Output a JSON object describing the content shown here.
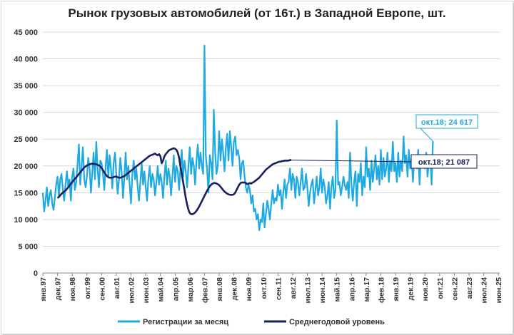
{
  "chart_data": {
    "type": "line",
    "title": "Рынок грузовых автомобилей (от 16т.) в Западной Европе, шт.",
    "ylim": [
      0,
      45000
    ],
    "y_ticks": [
      "0",
      "5 000",
      "10 000",
      "15 000",
      "20 000",
      "25 000",
      "30 000",
      "35 000",
      "40 000",
      "45 000"
    ],
    "x_tick_labels": [
      "янв.97",
      "дек.97",
      "ноя.98",
      "окт.99",
      "сен.00",
      "авг.01",
      "июл.02",
      "июн.03",
      "май.04",
      "апр.05",
      "мар.06",
      "фев.07",
      "янв.08",
      "дек.08",
      "ноя.09",
      "окт.10",
      "сен.11",
      "авг.12",
      "июл.13",
      "июн.14",
      "май.15",
      "апр.16",
      "мар.17",
      "фев.18",
      "янв.19",
      "дек.19",
      "ноя.20",
      "окт.21",
      "сен.22",
      "авг.23",
      "июл.24",
      "июн.25"
    ],
    "x_months_total": 342,
    "grid": "horizontal",
    "legend_position": "bottom",
    "series": [
      {
        "name": "Регистрации за месяц",
        "color": "#1ea9e1",
        "values": [
          15000,
          11500,
          13500,
          16000,
          12500,
          14500,
          15500,
          13000,
          11800,
          14000,
          16500,
          18000,
          14200,
          17500,
          18500,
          15500,
          13500,
          16500,
          19000,
          16000,
          17500,
          13500,
          18000,
          19500,
          15500,
          17000,
          20500,
          24000,
          16500,
          20000,
          23500,
          17500,
          16000,
          18000,
          21500,
          19500,
          15000,
          18500,
          22500,
          17500,
          24500,
          19500,
          16000,
          21000,
          20500,
          18500,
          15500,
          20000,
          23000,
          18000,
          22000,
          19500,
          15800,
          20500,
          22500,
          18500,
          14800,
          17500,
          21500,
          19000,
          14000,
          18000,
          22500,
          17500,
          20000,
          16500,
          13000,
          18500,
          21000,
          17500,
          19500,
          16000,
          13500,
          17000,
          20500,
          16500,
          19000,
          16000,
          13500,
          17500,
          20000,
          16000,
          18500,
          17500,
          14500,
          17000,
          20000,
          16500,
          18500,
          17000,
          14000,
          18000,
          21000,
          16500,
          19500,
          18000,
          14500,
          18000,
          22000,
          17000,
          20000,
          19000,
          15500,
          19500,
          23000,
          18000,
          21000,
          19000,
          16000,
          20000,
          23500,
          18500,
          21500,
          20000,
          16500,
          21000,
          24000,
          19500,
          22500,
          20000,
          18500,
          42500,
          22000,
          19000,
          15000,
          22000,
          20500,
          17500,
          30500,
          22500,
          18500,
          20000,
          26500,
          21000,
          25000,
          22500,
          19000,
          23500,
          26000,
          21000,
          26500,
          23500,
          20000,
          24500,
          25500,
          22000,
          23000,
          21500,
          17500,
          20500,
          21000,
          18000,
          16000,
          15000,
          16500,
          15500,
          13000,
          14500,
          11500,
          12000,
          10000,
          11000,
          8000,
          10000,
          9500,
          13000,
          8500,
          11000,
          13500,
          12000,
          10000,
          13000,
          15500,
          13000,
          14000,
          13500,
          16500,
          14500,
          15500,
          12000,
          15000,
          17500,
          14000,
          16500,
          17000,
          19500,
          15500,
          18500,
          17500,
          14000,
          18000,
          17000,
          14500,
          17000,
          19500,
          15500,
          16000,
          18500,
          16000,
          12500,
          15000,
          16500,
          17500,
          13000,
          15500,
          18000,
          14500,
          16000,
          19500,
          15000,
          17500,
          16000,
          13000,
          14500,
          17000,
          12000,
          16000,
          18000,
          14000,
          15500,
          28500,
          16500,
          17000,
          14500,
          16000,
          18000,
          16500,
          15500,
          17000,
          14000,
          22500,
          16500,
          13500,
          17000,
          19000,
          12500,
          18500,
          17000,
          20500,
          14500,
          18000,
          16000,
          23500,
          18000,
          19500,
          15500,
          21000,
          17000,
          19500,
          22000,
          17500,
          20000,
          16500,
          23000,
          17500,
          21500,
          18000,
          19500,
          22500,
          17000,
          21000,
          19000,
          24500,
          19000,
          20500,
          17000,
          22500,
          18000,
          21000,
          19000,
          25500,
          20500,
          22000,
          18000,
          23000,
          19500,
          21500,
          17000,
          21000,
          21500,
          19500,
          23000,
          16500,
          22000,
          21500,
          21000,
          19500,
          22500,
          18000,
          21000,
          22000,
          16500,
          24617
        ],
        "_note": "monthly values Jan-1997 to Oct-2018"
      },
      {
        "name": "Среднегодовой уровень",
        "color": "#1a1f5e",
        "values": [
          14000,
          14200,
          14500,
          14800,
          15000,
          15200,
          15400,
          15700,
          16000,
          16300,
          16700,
          17000,
          17300,
          17600,
          17900,
          18200,
          18500,
          18800,
          19100,
          19400,
          19700,
          19900,
          20100,
          20200,
          20300,
          20400,
          20400,
          20400,
          20350,
          20300,
          20200,
          20100,
          19900,
          19600,
          19200,
          18800,
          18400,
          18100,
          17900,
          17800,
          17800,
          17800,
          17900,
          18000,
          18000,
          17900,
          17800,
          17800,
          17900,
          18000,
          18100,
          18300,
          18500,
          18700,
          18900,
          19100,
          19300,
          19500,
          19700,
          19900,
          20100,
          20300,
          20500,
          20700,
          20900,
          21100,
          21300,
          21500,
          21700,
          21900,
          22000,
          22100,
          22200,
          22300,
          22100,
          22000,
          22200,
          21800,
          20500,
          21000,
          21800,
          22200,
          22500,
          22800,
          23000,
          23100,
          23200,
          23300,
          23200,
          23000,
          22500,
          21500,
          20000,
          18500,
          17000,
          15500,
          14000,
          12800,
          11800,
          11200,
          11000,
          11000,
          11100,
          11300,
          11600,
          12000,
          12400,
          12900,
          13400,
          13900,
          14400,
          14900,
          15400,
          15800,
          16200,
          16500,
          16700,
          16800,
          16800,
          16700,
          16600,
          16400,
          16100,
          15800,
          15500,
          15200,
          15000,
          14800,
          14700,
          14600,
          14600,
          14600,
          14700,
          15000,
          15500,
          16000,
          16500,
          16800,
          16900,
          16900,
          16900,
          16800,
          16600,
          16700,
          16800,
          16700,
          16900,
          17000,
          17200,
          17400,
          17600,
          17800,
          18100,
          18400,
          18700,
          19000,
          19300,
          19500,
          19700,
          19900,
          20100,
          20300,
          20400,
          20500,
          20600,
          20700,
          20800,
          20800,
          20900,
          20900,
          21000,
          21000,
          21000,
          21000,
          21100,
          21087
        ],
        "_note": "monthly values Dec-1997 to Oct-2018"
      }
    ],
    "annotations": [
      {
        "text": "окт.18; 24 617",
        "color": "#1ea9e1"
      },
      {
        "text": "окт.18;  21 087",
        "color": "#1a1f5e"
      }
    ]
  }
}
